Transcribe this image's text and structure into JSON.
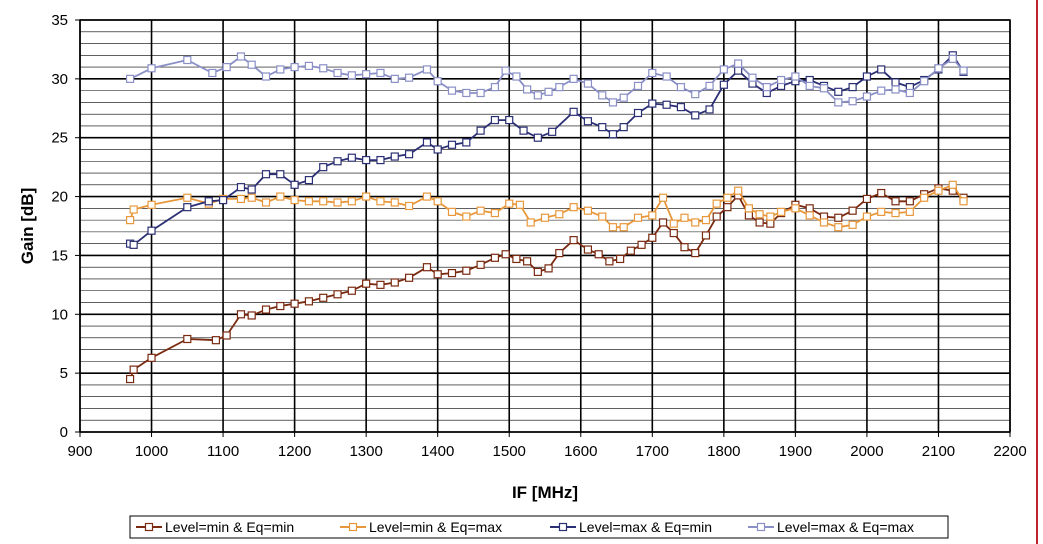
{
  "chart_data": {
    "type": "line",
    "title": "",
    "xlabel": "IF [MHz]",
    "ylabel": "Gain [dB]",
    "xlim": [
      900,
      2200
    ],
    "ylim": [
      0,
      35
    ],
    "x_ticks": [
      900,
      1000,
      1100,
      1200,
      1300,
      1400,
      1500,
      1600,
      1700,
      1800,
      1900,
      2000,
      2100,
      2200
    ],
    "y_ticks": [
      0,
      5,
      10,
      15,
      20,
      25,
      30,
      35
    ],
    "x_major_step": 100,
    "y_minor_step": 1,
    "y_major_step": 5,
    "grid": true,
    "legend_position": "bottom",
    "marker": "open-square",
    "series": [
      {
        "name": "Level=min & Eq=min",
        "color": "#7a2a10",
        "points": [
          [
            970,
            4.5
          ],
          [
            975,
            5.3
          ],
          [
            1000,
            6.3
          ],
          [
            1050,
            7.9
          ],
          [
            1090,
            7.8
          ],
          [
            1105,
            8.2
          ],
          [
            1125,
            10.0
          ],
          [
            1140,
            9.9
          ],
          [
            1160,
            10.4
          ],
          [
            1180,
            10.7
          ],
          [
            1200,
            10.9
          ],
          [
            1220,
            11.1
          ],
          [
            1240,
            11.4
          ],
          [
            1260,
            11.7
          ],
          [
            1280,
            12.0
          ],
          [
            1300,
            12.6
          ],
          [
            1320,
            12.5
          ],
          [
            1340,
            12.7
          ],
          [
            1360,
            13.1
          ],
          [
            1385,
            14.0
          ],
          [
            1400,
            13.4
          ],
          [
            1420,
            13.5
          ],
          [
            1440,
            13.7
          ],
          [
            1460,
            14.2
          ],
          [
            1480,
            14.8
          ],
          [
            1495,
            15.1
          ],
          [
            1510,
            14.7
          ],
          [
            1525,
            14.5
          ],
          [
            1540,
            13.6
          ],
          [
            1555,
            13.9
          ],
          [
            1570,
            15.2
          ],
          [
            1590,
            16.3
          ],
          [
            1610,
            15.5
          ],
          [
            1625,
            15.1
          ],
          [
            1640,
            14.5
          ],
          [
            1655,
            14.7
          ],
          [
            1670,
            15.4
          ],
          [
            1685,
            15.9
          ],
          [
            1700,
            16.5
          ],
          [
            1715,
            17.8
          ],
          [
            1730,
            16.9
          ],
          [
            1745,
            15.7
          ],
          [
            1760,
            15.2
          ],
          [
            1775,
            16.7
          ],
          [
            1790,
            18.3
          ],
          [
            1805,
            19.1
          ],
          [
            1820,
            20.1
          ],
          [
            1835,
            18.4
          ],
          [
            1850,
            17.8
          ],
          [
            1865,
            17.7
          ],
          [
            1880,
            18.6
          ],
          [
            1900,
            19.3
          ],
          [
            1920,
            19.0
          ],
          [
            1940,
            18.3
          ],
          [
            1960,
            18.2
          ],
          [
            1980,
            18.8
          ],
          [
            2000,
            19.8
          ],
          [
            2020,
            20.3
          ],
          [
            2040,
            19.6
          ],
          [
            2060,
            19.6
          ],
          [
            2080,
            20.2
          ],
          [
            2100,
            20.7
          ],
          [
            2120,
            20.5
          ],
          [
            2135,
            19.9
          ]
        ]
      },
      {
        "name": "Level=min & Eq=max",
        "color": "#e8983c",
        "points": [
          [
            970,
            18.0
          ],
          [
            975,
            18.9
          ],
          [
            1000,
            19.3
          ],
          [
            1050,
            19.9
          ],
          [
            1080,
            19.4
          ],
          [
            1100,
            19.8
          ],
          [
            1125,
            19.8
          ],
          [
            1140,
            19.9
          ],
          [
            1160,
            19.5
          ],
          [
            1180,
            20.0
          ],
          [
            1200,
            19.7
          ],
          [
            1220,
            19.6
          ],
          [
            1240,
            19.6
          ],
          [
            1260,
            19.5
          ],
          [
            1280,
            19.6
          ],
          [
            1300,
            20.0
          ],
          [
            1320,
            19.6
          ],
          [
            1340,
            19.5
          ],
          [
            1360,
            19.2
          ],
          [
            1385,
            20.0
          ],
          [
            1400,
            19.6
          ],
          [
            1420,
            18.7
          ],
          [
            1440,
            18.3
          ],
          [
            1460,
            18.8
          ],
          [
            1480,
            18.6
          ],
          [
            1500,
            19.4
          ],
          [
            1515,
            19.3
          ],
          [
            1530,
            17.8
          ],
          [
            1550,
            18.2
          ],
          [
            1570,
            18.5
          ],
          [
            1590,
            19.1
          ],
          [
            1610,
            18.8
          ],
          [
            1630,
            18.3
          ],
          [
            1645,
            17.4
          ],
          [
            1660,
            17.4
          ],
          [
            1680,
            18.2
          ],
          [
            1700,
            18.4
          ],
          [
            1715,
            19.9
          ],
          [
            1730,
            17.7
          ],
          [
            1745,
            18.2
          ],
          [
            1760,
            17.8
          ],
          [
            1775,
            18.0
          ],
          [
            1790,
            19.4
          ],
          [
            1805,
            19.9
          ],
          [
            1820,
            20.5
          ],
          [
            1835,
            19.0
          ],
          [
            1850,
            18.5
          ],
          [
            1865,
            18.3
          ],
          [
            1880,
            18.7
          ],
          [
            1900,
            19.0
          ],
          [
            1920,
            18.4
          ],
          [
            1940,
            17.8
          ],
          [
            1960,
            17.4
          ],
          [
            1980,
            17.6
          ],
          [
            2000,
            18.3
          ],
          [
            2020,
            18.7
          ],
          [
            2040,
            18.6
          ],
          [
            2060,
            18.7
          ],
          [
            2080,
            19.9
          ],
          [
            2100,
            20.5
          ],
          [
            2120,
            21.0
          ],
          [
            2135,
            19.6
          ]
        ]
      },
      {
        "name": "Level=max & Eq=min",
        "color": "#2b2f74",
        "points": [
          [
            970,
            16.0
          ],
          [
            975,
            15.9
          ],
          [
            1000,
            17.1
          ],
          [
            1050,
            19.1
          ],
          [
            1080,
            19.6
          ],
          [
            1100,
            19.7
          ],
          [
            1125,
            20.8
          ],
          [
            1140,
            20.6
          ],
          [
            1160,
            21.9
          ],
          [
            1180,
            21.9
          ],
          [
            1200,
            21.0
          ],
          [
            1220,
            21.4
          ],
          [
            1240,
            22.5
          ],
          [
            1260,
            23.0
          ],
          [
            1280,
            23.3
          ],
          [
            1300,
            23.1
          ],
          [
            1320,
            23.1
          ],
          [
            1340,
            23.4
          ],
          [
            1360,
            23.6
          ],
          [
            1385,
            24.6
          ],
          [
            1400,
            24.0
          ],
          [
            1420,
            24.4
          ],
          [
            1440,
            24.6
          ],
          [
            1460,
            25.6
          ],
          [
            1480,
            26.5
          ],
          [
            1500,
            26.5
          ],
          [
            1520,
            25.6
          ],
          [
            1540,
            25.0
          ],
          [
            1560,
            25.5
          ],
          [
            1590,
            27.2
          ],
          [
            1610,
            26.4
          ],
          [
            1630,
            25.9
          ],
          [
            1645,
            25.3
          ],
          [
            1660,
            25.9
          ],
          [
            1680,
            27.1
          ],
          [
            1700,
            27.9
          ],
          [
            1720,
            27.8
          ],
          [
            1740,
            27.6
          ],
          [
            1760,
            26.9
          ],
          [
            1780,
            27.4
          ],
          [
            1800,
            29.5
          ],
          [
            1820,
            30.7
          ],
          [
            1840,
            29.6
          ],
          [
            1860,
            28.8
          ],
          [
            1880,
            29.4
          ],
          [
            1900,
            29.8
          ],
          [
            1920,
            29.9
          ],
          [
            1940,
            29.4
          ],
          [
            1960,
            28.9
          ],
          [
            1980,
            29.3
          ],
          [
            2000,
            30.2
          ],
          [
            2020,
            30.8
          ],
          [
            2040,
            29.7
          ],
          [
            2060,
            29.3
          ],
          [
            2080,
            29.9
          ],
          [
            2100,
            30.8
          ],
          [
            2120,
            32.0
          ],
          [
            2135,
            30.6
          ]
        ]
      },
      {
        "name": "Level=max & Eq=max",
        "color": "#8a8fc6",
        "points": [
          [
            970,
            30.0
          ],
          [
            1000,
            30.9
          ],
          [
            1050,
            31.6
          ],
          [
            1085,
            30.5
          ],
          [
            1105,
            31.0
          ],
          [
            1125,
            31.9
          ],
          [
            1140,
            31.2
          ],
          [
            1160,
            30.2
          ],
          [
            1180,
            30.8
          ],
          [
            1200,
            31.0
          ],
          [
            1220,
            31.1
          ],
          [
            1240,
            30.9
          ],
          [
            1260,
            30.5
          ],
          [
            1280,
            30.3
          ],
          [
            1300,
            30.4
          ],
          [
            1320,
            30.5
          ],
          [
            1340,
            30.0
          ],
          [
            1360,
            30.1
          ],
          [
            1385,
            30.8
          ],
          [
            1400,
            29.8
          ],
          [
            1420,
            29.0
          ],
          [
            1440,
            28.8
          ],
          [
            1460,
            28.8
          ],
          [
            1480,
            29.3
          ],
          [
            1495,
            30.7
          ],
          [
            1510,
            30.2
          ],
          [
            1525,
            29.1
          ],
          [
            1540,
            28.6
          ],
          [
            1555,
            28.9
          ],
          [
            1570,
            29.3
          ],
          [
            1590,
            30.0
          ],
          [
            1610,
            29.6
          ],
          [
            1630,
            28.6
          ],
          [
            1645,
            28.0
          ],
          [
            1660,
            28.4
          ],
          [
            1680,
            29.4
          ],
          [
            1700,
            30.5
          ],
          [
            1720,
            30.2
          ],
          [
            1740,
            29.3
          ],
          [
            1760,
            28.7
          ],
          [
            1780,
            29.4
          ],
          [
            1800,
            30.8
          ],
          [
            1820,
            31.3
          ],
          [
            1840,
            30.1
          ],
          [
            1860,
            29.3
          ],
          [
            1880,
            29.9
          ],
          [
            1900,
            30.2
          ],
          [
            1920,
            29.4
          ],
          [
            1940,
            29.2
          ],
          [
            1960,
            28.0
          ],
          [
            1980,
            28.1
          ],
          [
            2000,
            28.5
          ],
          [
            2020,
            29.0
          ],
          [
            2040,
            29.1
          ],
          [
            2060,
            28.8
          ],
          [
            2080,
            29.8
          ],
          [
            2100,
            30.9
          ],
          [
            2120,
            31.7
          ],
          [
            2135,
            30.7
          ]
        ]
      }
    ]
  }
}
